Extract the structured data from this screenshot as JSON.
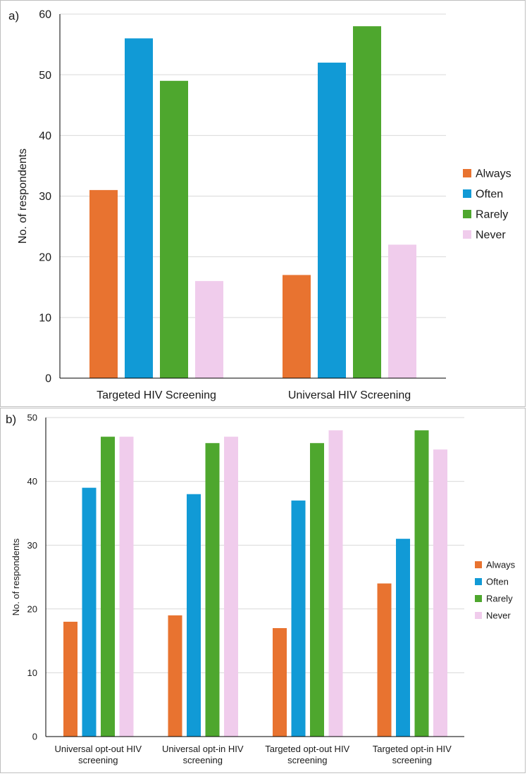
{
  "colors": {
    "Always": "#E87330",
    "Often": "#119AD6",
    "Rarely": "#4EA72E",
    "Never": "#F0CCEC",
    "grid": "#d9d9d9",
    "axis": "#000000"
  },
  "chart_data": [
    {
      "panel_label": "a)",
      "type": "bar",
      "ylabel": "No. of respondents",
      "xlabel": "",
      "ylim": [
        0,
        60
      ],
      "yticks": [
        0,
        10,
        20,
        30,
        40,
        50,
        60
      ],
      "grid": true,
      "legend_position": "right",
      "categories": [
        [
          "Targeted HIV Screening"
        ],
        [
          "Universal HIV Screening"
        ]
      ],
      "series": [
        {
          "name": "Always",
          "values": [
            31,
            17
          ]
        },
        {
          "name": "Often",
          "values": [
            56,
            52
          ]
        },
        {
          "name": "Rarely",
          "values": [
            49,
            58
          ]
        },
        {
          "name": "Never",
          "values": [
            16,
            22
          ]
        }
      ]
    },
    {
      "panel_label": "b)",
      "type": "bar",
      "ylabel": "No. of respondents",
      "xlabel": "",
      "ylim": [
        0,
        50
      ],
      "yticks": [
        0,
        10,
        20,
        30,
        40,
        50
      ],
      "grid": true,
      "legend_position": "right",
      "categories": [
        [
          "Universal opt-out HIV",
          "screening"
        ],
        [
          "Universal opt-in HIV",
          "screening"
        ],
        [
          "Targeted opt-out HIV",
          "screening"
        ],
        [
          "Targeted opt-in HIV",
          "screening"
        ]
      ],
      "series": [
        {
          "name": "Always",
          "values": [
            18,
            19,
            17,
            24
          ]
        },
        {
          "name": "Often",
          "values": [
            39,
            38,
            37,
            31
          ]
        },
        {
          "name": "Rarely",
          "values": [
            47,
            46,
            46,
            48
          ]
        },
        {
          "name": "Never",
          "values": [
            47,
            47,
            48,
            45
          ]
        }
      ]
    }
  ]
}
